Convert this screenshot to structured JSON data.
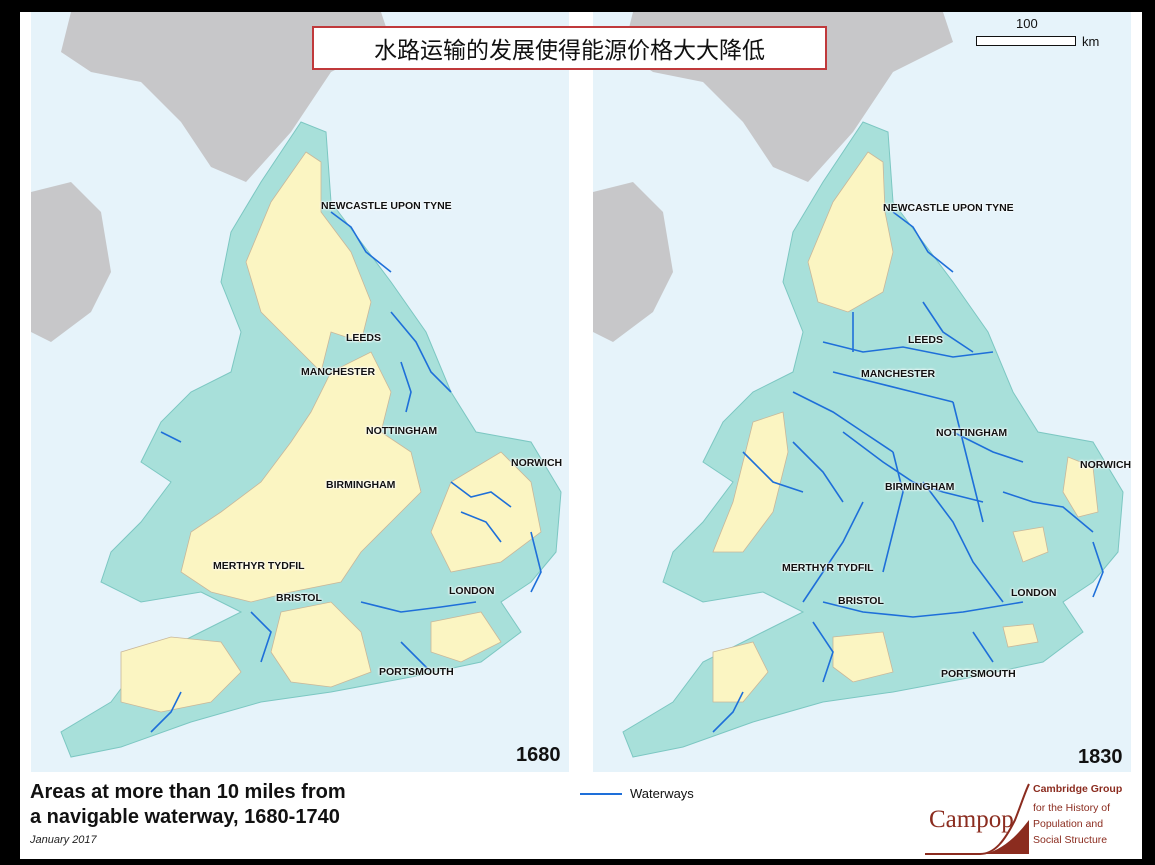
{
  "title": "水路运输的发展使得能源价格大大降低",
  "scale": {
    "value": "100",
    "unit": "km"
  },
  "maps": [
    {
      "year": "1680",
      "cities": [
        "NEWCASTLE UPON TYNE",
        "LEEDS",
        "MANCHESTER",
        "NOTTINGHAM",
        "NORWICH",
        "BIRMINGHAM",
        "MERTHYR TYDFIL",
        "BRISTOL",
        "LONDON",
        "PORTSMOUTH"
      ]
    },
    {
      "year": "1830",
      "cities": [
        "NEWCASTLE UPON TYNE",
        "LEEDS",
        "MANCHESTER",
        "NOTTINGHAM",
        "NORWICH",
        "BIRMINGHAM",
        "MERTHYR TYDFIL",
        "BRISTOL",
        "LONDON",
        "PORTSMOUTH"
      ]
    }
  ],
  "caption": {
    "line1": "Areas at more than 10 miles from",
    "line2": "a navigable waterway, 1680-1740",
    "date": "January 2017"
  },
  "legend": {
    "waterways": "Waterways"
  },
  "logo": {
    "wordmark": "Campop",
    "line1": "Cambridge Group",
    "line2": "for the History of",
    "line3": "Population and",
    "line4": "Social Structure"
  },
  "colors": {
    "sea": "#e6f3fa",
    "land_other": "#c7c7c9",
    "near_water": "#a8e0da",
    "far_area": "#fbf5c2",
    "waterway": "#1e6fd9",
    "accent": "#c0393b"
  }
}
